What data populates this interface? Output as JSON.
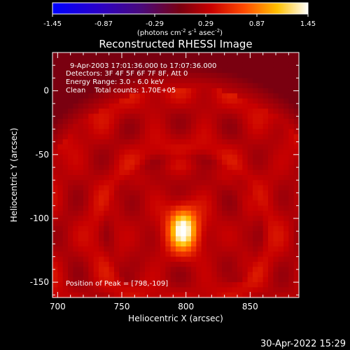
{
  "chart_data": {
    "type": "heatmap",
    "title": "Reconstructed RHESSI Image",
    "xlabel": "Heliocentric X (arcsec)",
    "ylabel": "Heliocentric Y (arcsec)",
    "xlim": [
      696,
      888
    ],
    "ylim": [
      -162,
      30
    ],
    "x_ticks": [
      700,
      750,
      800,
      850
    ],
    "y_ticks": [
      0,
      -50,
      -100,
      -150
    ],
    "colorbar": {
      "ticks": [
        "-1.45",
        "-0.87",
        "-0.29",
        "0.29",
        "0.87",
        "1.45"
      ],
      "range": [
        -1.45,
        1.45
      ],
      "units_label": "(photons cm",
      "units_exp1": "-2",
      "units_mid1": " s",
      "units_exp2": "-1",
      "units_mid2": " asec",
      "units_exp3": "-2",
      "units_close": ")"
    },
    "annotations": {
      "time_range": "9-Apr-2003 17:01:36.000 to 17:07:36.000",
      "detectors": "Detectors: 3F 4F 5F 6F 7F 8F, Att 0",
      "energy": "Energy Range: 3.0 - 6.0 keV",
      "clean": "Clean    Total counts: 1.70E+05",
      "peak": "Position of Peak = [798,-109]"
    },
    "peak": {
      "x": 798,
      "y": -109,
      "value": 1.45
    },
    "background_level": 0.3,
    "halo_level": 0.0
  },
  "timestamp": "30-Apr-2022 15:29",
  "colors": {
    "axes": "#ffffff",
    "background": "#000000"
  }
}
